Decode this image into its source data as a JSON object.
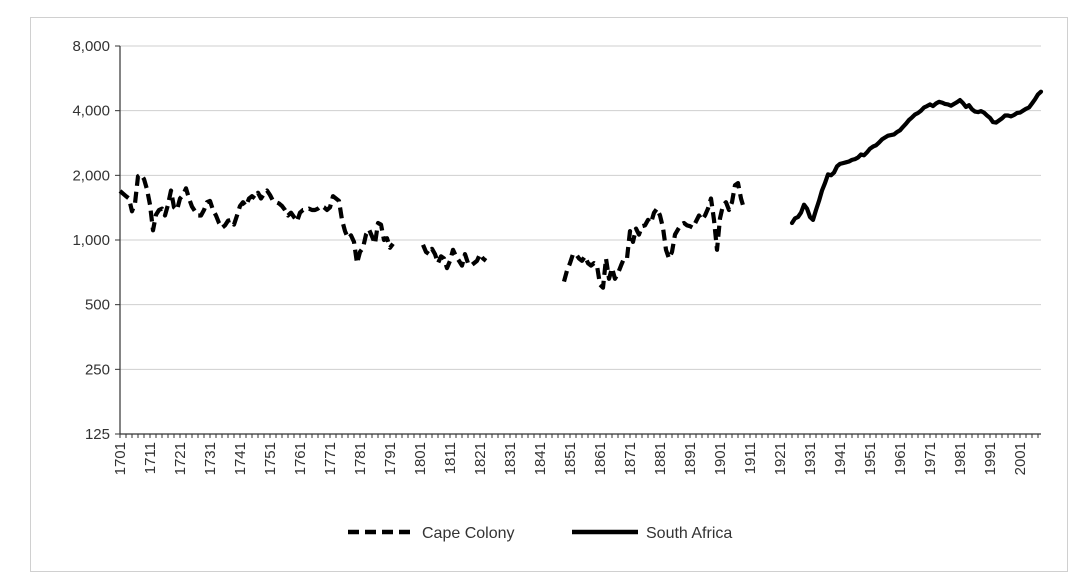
{
  "chart_data": {
    "type": "line",
    "title": "",
    "xlabel": "",
    "ylabel": "",
    "y_scale": "log",
    "ylim": [
      125,
      8000
    ],
    "y_ticks": [
      125,
      250,
      500,
      1000,
      2000,
      4000,
      8000
    ],
    "y_tick_labels": [
      "125",
      "250",
      "500",
      "1,000",
      "2,000",
      "4,000",
      "8,000"
    ],
    "xlim": [
      1701,
      2008
    ],
    "x_ticks": [
      1701,
      1711,
      1721,
      1731,
      1741,
      1751,
      1761,
      1771,
      1781,
      1791,
      1801,
      1811,
      1821,
      1831,
      1841,
      1851,
      1861,
      1871,
      1881,
      1891,
      1901,
      1911,
      1921,
      1931,
      1941,
      1951,
      1961,
      1971,
      1981,
      1991,
      2001
    ],
    "x_tick_labels": [
      "1701",
      "1711",
      "1721",
      "1731",
      "1741",
      "1751",
      "1761",
      "1771",
      "1781",
      "1791",
      "1801",
      "1811",
      "1821",
      "1831",
      "1841",
      "1851",
      "1861",
      "1871",
      "1881",
      "1891",
      "1901",
      "1911",
      "1921",
      "1931",
      "1941",
      "1951",
      "1961",
      "1971",
      "1981",
      "1991",
      "2001"
    ],
    "grid": "horizontal",
    "legend_position": "bottom",
    "series": [
      {
        "name": "Cape Colony",
        "style": "dashed",
        "color": "#000000",
        "segments": [
          [
            [
              1701,
              1690
            ],
            [
              1703,
              1600
            ],
            [
              1704,
              1560
            ],
            [
              1705,
              1360
            ],
            [
              1706,
              1480
            ],
            [
              1707,
              1980
            ],
            [
              1708,
              2020
            ],
            [
              1709,
              1920
            ],
            [
              1710,
              1720
            ],
            [
              1711,
              1460
            ],
            [
              1712,
              1110
            ],
            [
              1713,
              1310
            ],
            [
              1714,
              1380
            ],
            [
              1715,
              1400
            ],
            [
              1716,
              1300
            ],
            [
              1717,
              1460
            ],
            [
              1718,
              1700
            ],
            [
              1719,
              1420
            ],
            [
              1720,
              1380
            ],
            [
              1721,
              1560
            ],
            [
              1722,
              1620
            ],
            [
              1723,
              1740
            ],
            [
              1724,
              1560
            ],
            [
              1725,
              1430
            ],
            [
              1726,
              1360
            ],
            [
              1727,
              1300
            ],
            [
              1728,
              1300
            ],
            [
              1729,
              1380
            ],
            [
              1730,
              1500
            ],
            [
              1731,
              1520
            ],
            [
              1732,
              1380
            ],
            [
              1733,
              1300
            ],
            [
              1734,
              1200
            ],
            [
              1735,
              1140
            ],
            [
              1736,
              1170
            ],
            [
              1737,
              1230
            ],
            [
              1738,
              1240
            ],
            [
              1739,
              1180
            ],
            [
              1740,
              1300
            ],
            [
              1741,
              1440
            ],
            [
              1742,
              1500
            ],
            [
              1743,
              1440
            ],
            [
              1744,
              1560
            ],
            [
              1745,
              1600
            ],
            [
              1746,
              1560
            ],
            [
              1747,
              1660
            ],
            [
              1748,
              1560
            ],
            [
              1749,
              1640
            ],
            [
              1750,
              1700
            ],
            [
              1751,
              1620
            ],
            [
              1752,
              1520
            ],
            [
              1753,
              1500
            ],
            [
              1754,
              1480
            ],
            [
              1755,
              1440
            ],
            [
              1756,
              1380
            ],
            [
              1757,
              1300
            ],
            [
              1758,
              1340
            ],
            [
              1759,
              1280
            ],
            [
              1760,
              1220
            ],
            [
              1761,
              1340
            ],
            [
              1762,
              1380
            ],
            [
              1763,
              1380
            ],
            [
              1764,
              1400
            ],
            [
              1765,
              1380
            ],
            [
              1766,
              1380
            ],
            [
              1767,
              1400
            ],
            [
              1768,
              1440
            ],
            [
              1769,
              1420
            ],
            [
              1770,
              1380
            ],
            [
              1771,
              1420
            ],
            [
              1772,
              1600
            ],
            [
              1773,
              1560
            ],
            [
              1774,
              1520
            ],
            [
              1775,
              1240
            ],
            [
              1776,
              1100
            ],
            [
              1777,
              1020
            ],
            [
              1778,
              1050
            ],
            [
              1779,
              980
            ],
            [
              1780,
              780
            ],
            [
              1781,
              880
            ],
            [
              1782,
              920
            ],
            [
              1783,
              1060
            ],
            [
              1784,
              1120
            ],
            [
              1785,
              1040
            ],
            [
              1786,
              960
            ],
            [
              1787,
              1200
            ],
            [
              1788,
              1180
            ],
            [
              1789,
              1000
            ],
            [
              1790,
              1020
            ],
            [
              1791,
              920
            ],
            [
              1792,
              960
            ]
          ],
          [
            [
              1802,
              950
            ],
            [
              1803,
              880
            ],
            [
              1804,
              860
            ],
            [
              1805,
              910
            ],
            [
              1806,
              860
            ],
            [
              1807,
              780
            ],
            [
              1808,
              840
            ],
            [
              1809,
              820
            ],
            [
              1810,
              740
            ],
            [
              1811,
              800
            ],
            [
              1812,
              900
            ],
            [
              1813,
              840
            ],
            [
              1814,
              800
            ],
            [
              1815,
              760
            ],
            [
              1816,
              860
            ],
            [
              1817,
              780
            ],
            [
              1818,
              760
            ],
            [
              1819,
              780
            ],
            [
              1820,
              800
            ],
            [
              1821,
              860
            ],
            [
              1822,
              820
            ],
            [
              1823,
              800
            ]
          ],
          [
            [
              1849,
              640
            ],
            [
              1850,
              720
            ],
            [
              1851,
              780
            ],
            [
              1852,
              860
            ],
            [
              1853,
              860
            ],
            [
              1854,
              820
            ],
            [
              1855,
              800
            ],
            [
              1856,
              840
            ],
            [
              1857,
              780
            ],
            [
              1858,
              760
            ],
            [
              1859,
              780
            ],
            [
              1860,
              760
            ],
            [
              1861,
              620
            ],
            [
              1862,
              600
            ],
            [
              1863,
              820
            ],
            [
              1864,
              660
            ],
            [
              1865,
              740
            ],
            [
              1866,
              660
            ],
            [
              1867,
              700
            ],
            [
              1868,
              760
            ],
            [
              1869,
              820
            ],
            [
              1870,
              820
            ],
            [
              1871,
              1100
            ],
            [
              1872,
              980
            ],
            [
              1873,
              1130
            ],
            [
              1874,
              1060
            ],
            [
              1875,
              1160
            ],
            [
              1876,
              1170
            ],
            [
              1877,
              1240
            ],
            [
              1878,
              1200
            ],
            [
              1879,
              1340
            ],
            [
              1880,
              1400
            ],
            [
              1881,
              1300
            ],
            [
              1882,
              1140
            ],
            [
              1883,
              900
            ],
            [
              1884,
              820
            ],
            [
              1885,
              880
            ],
            [
              1886,
              1060
            ],
            [
              1887,
              1120
            ],
            [
              1888,
              1180
            ],
            [
              1889,
              1200
            ],
            [
              1890,
              1170
            ],
            [
              1891,
              1160
            ],
            [
              1892,
              1140
            ],
            [
              1893,
              1220
            ],
            [
              1894,
              1300
            ],
            [
              1895,
              1240
            ],
            [
              1896,
              1300
            ],
            [
              1897,
              1400
            ],
            [
              1898,
              1560
            ],
            [
              1899,
              1240
            ],
            [
              1900,
              900
            ],
            [
              1901,
              1260
            ],
            [
              1902,
              1450
            ],
            [
              1903,
              1500
            ],
            [
              1904,
              1380
            ],
            [
              1905,
              1500
            ],
            [
              1906,
              1800
            ],
            [
              1907,
              1840
            ],
            [
              1908,
              1560
            ],
            [
              1909,
              1400
            ]
          ]
        ]
      },
      {
        "name": "South Africa",
        "style": "solid",
        "color": "#000000",
        "segments": [
          [
            [
              1925,
              1200
            ],
            [
              1926,
              1260
            ],
            [
              1927,
              1280
            ],
            [
              1928,
              1340
            ],
            [
              1929,
              1460
            ],
            [
              1930,
              1400
            ],
            [
              1931,
              1280
            ],
            [
              1932,
              1240
            ],
            [
              1933,
              1380
            ],
            [
              1934,
              1520
            ],
            [
              1935,
              1700
            ],
            [
              1936,
              1840
            ],
            [
              1937,
              2020
            ],
            [
              1938,
              2000
            ],
            [
              1939,
              2060
            ],
            [
              1940,
              2200
            ],
            [
              1941,
              2260
            ],
            [
              1942,
              2280
            ],
            [
              1943,
              2300
            ],
            [
              1944,
              2320
            ],
            [
              1945,
              2360
            ],
            [
              1946,
              2380
            ],
            [
              1947,
              2420
            ],
            [
              1948,
              2500
            ],
            [
              1949,
              2480
            ],
            [
              1950,
              2560
            ],
            [
              1951,
              2660
            ],
            [
              1952,
              2720
            ],
            [
              1953,
              2760
            ],
            [
              1954,
              2840
            ],
            [
              1955,
              2940
            ],
            [
              1956,
              3000
            ],
            [
              1957,
              3060
            ],
            [
              1958,
              3080
            ],
            [
              1959,
              3100
            ],
            [
              1960,
              3180
            ],
            [
              1961,
              3240
            ],
            [
              1962,
              3360
            ],
            [
              1963,
              3480
            ],
            [
              1964,
              3620
            ],
            [
              1965,
              3720
            ],
            [
              1966,
              3840
            ],
            [
              1967,
              3900
            ],
            [
              1968,
              4000
            ],
            [
              1969,
              4140
            ],
            [
              1970,
              4200
            ],
            [
              1971,
              4280
            ],
            [
              1972,
              4200
            ],
            [
              1973,
              4320
            ],
            [
              1974,
              4400
            ],
            [
              1975,
              4360
            ],
            [
              1976,
              4300
            ],
            [
              1977,
              4280
            ],
            [
              1978,
              4220
            ],
            [
              1979,
              4300
            ],
            [
              1980,
              4380
            ],
            [
              1981,
              4480
            ],
            [
              1982,
              4340
            ],
            [
              1983,
              4160
            ],
            [
              1984,
              4240
            ],
            [
              1985,
              4060
            ],
            [
              1986,
              3960
            ],
            [
              1987,
              3940
            ],
            [
              1988,
              3980
            ],
            [
              1989,
              3920
            ],
            [
              1990,
              3800
            ],
            [
              1991,
              3700
            ],
            [
              1992,
              3540
            ],
            [
              1993,
              3520
            ],
            [
              1994,
              3600
            ],
            [
              1995,
              3680
            ],
            [
              1996,
              3800
            ],
            [
              1997,
              3800
            ],
            [
              1998,
              3760
            ],
            [
              1999,
              3820
            ],
            [
              2000,
              3900
            ],
            [
              2001,
              3920
            ],
            [
              2002,
              4000
            ],
            [
              2003,
              4080
            ],
            [
              2004,
              4140
            ],
            [
              2005,
              4320
            ],
            [
              2006,
              4520
            ],
            [
              2007,
              4760
            ],
            [
              2008,
              4900
            ]
          ]
        ]
      }
    ]
  }
}
